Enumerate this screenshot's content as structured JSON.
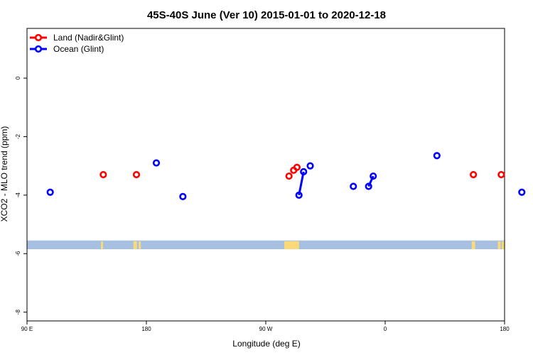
{
  "chart_data": {
    "type": "scatter",
    "title": "45S-40S June (Ver 10)   2015-01-01 to 2020-12-18",
    "xlabel": "Longitude (deg E)",
    "ylabel": "XCO2 - MLO trend (ppm)",
    "xlim": [
      90,
      450
    ],
    "ylim": [
      -8.3,
      1.7
    ],
    "x_ticks": [
      {
        "value": 90,
        "label": "90 E"
      },
      {
        "value": 180,
        "label": "180"
      },
      {
        "value": 270,
        "label": "90 W"
      },
      {
        "value": 360,
        "label": "0"
      },
      {
        "value": 450,
        "label": "180"
      }
    ],
    "y_ticks": [
      {
        "value": 0,
        "label": "0"
      },
      {
        "value": -2,
        "label": "-2"
      },
      {
        "value": -4,
        "label": "-4"
      },
      {
        "value": -6,
        "label": "-6"
      },
      {
        "value": -8,
        "label": "-8"
      }
    ],
    "legend_position": "top-left",
    "series": [
      {
        "name": "Land (Nadir&Glint)",
        "color": "#ff0000",
        "points": [
          {
            "x": 147.5,
            "y": -3.3
          },
          {
            "x": 172.5,
            "y": -3.3
          },
          {
            "x": 287.5,
            "y": -3.35
          },
          {
            "x": 291.0,
            "y": -3.15
          },
          {
            "x": 293.5,
            "y": -3.05
          },
          {
            "x": 426.5,
            "y": -3.3
          },
          {
            "x": 447.5,
            "y": -3.3
          }
        ],
        "segments": []
      },
      {
        "name": "Ocean (Glint)",
        "color": "#0000ff",
        "points": [
          {
            "x": 107.5,
            "y": -3.9
          },
          {
            "x": 187.5,
            "y": -2.9
          },
          {
            "x": 207.5,
            "y": -4.05
          },
          {
            "x": 295.0,
            "y": -4.0
          },
          {
            "x": 298.5,
            "y": -3.2
          },
          {
            "x": 303.5,
            "y": -3.0
          },
          {
            "x": 336.0,
            "y": -3.7
          },
          {
            "x": 347.5,
            "y": -3.7
          },
          {
            "x": 351.0,
            "y": -3.35
          },
          {
            "x": 399.0,
            "y": -2.65
          },
          {
            "x": 463.0,
            "y": -3.9
          }
        ],
        "segments": [
          [
            3,
            4
          ],
          [
            7,
            8
          ]
        ]
      }
    ],
    "map_strip": {
      "y_top": -5.55,
      "y_bottom": -5.85,
      "ocean_color": "#a7bfe1",
      "land_color": "#f9d97a",
      "land_x": [
        146.5,
        171.5,
        175.0,
        285.5,
        287.5,
        290.0,
        292.0,
        294.0,
        426.0,
        427.0,
        446.0,
        449.0
      ]
    }
  }
}
